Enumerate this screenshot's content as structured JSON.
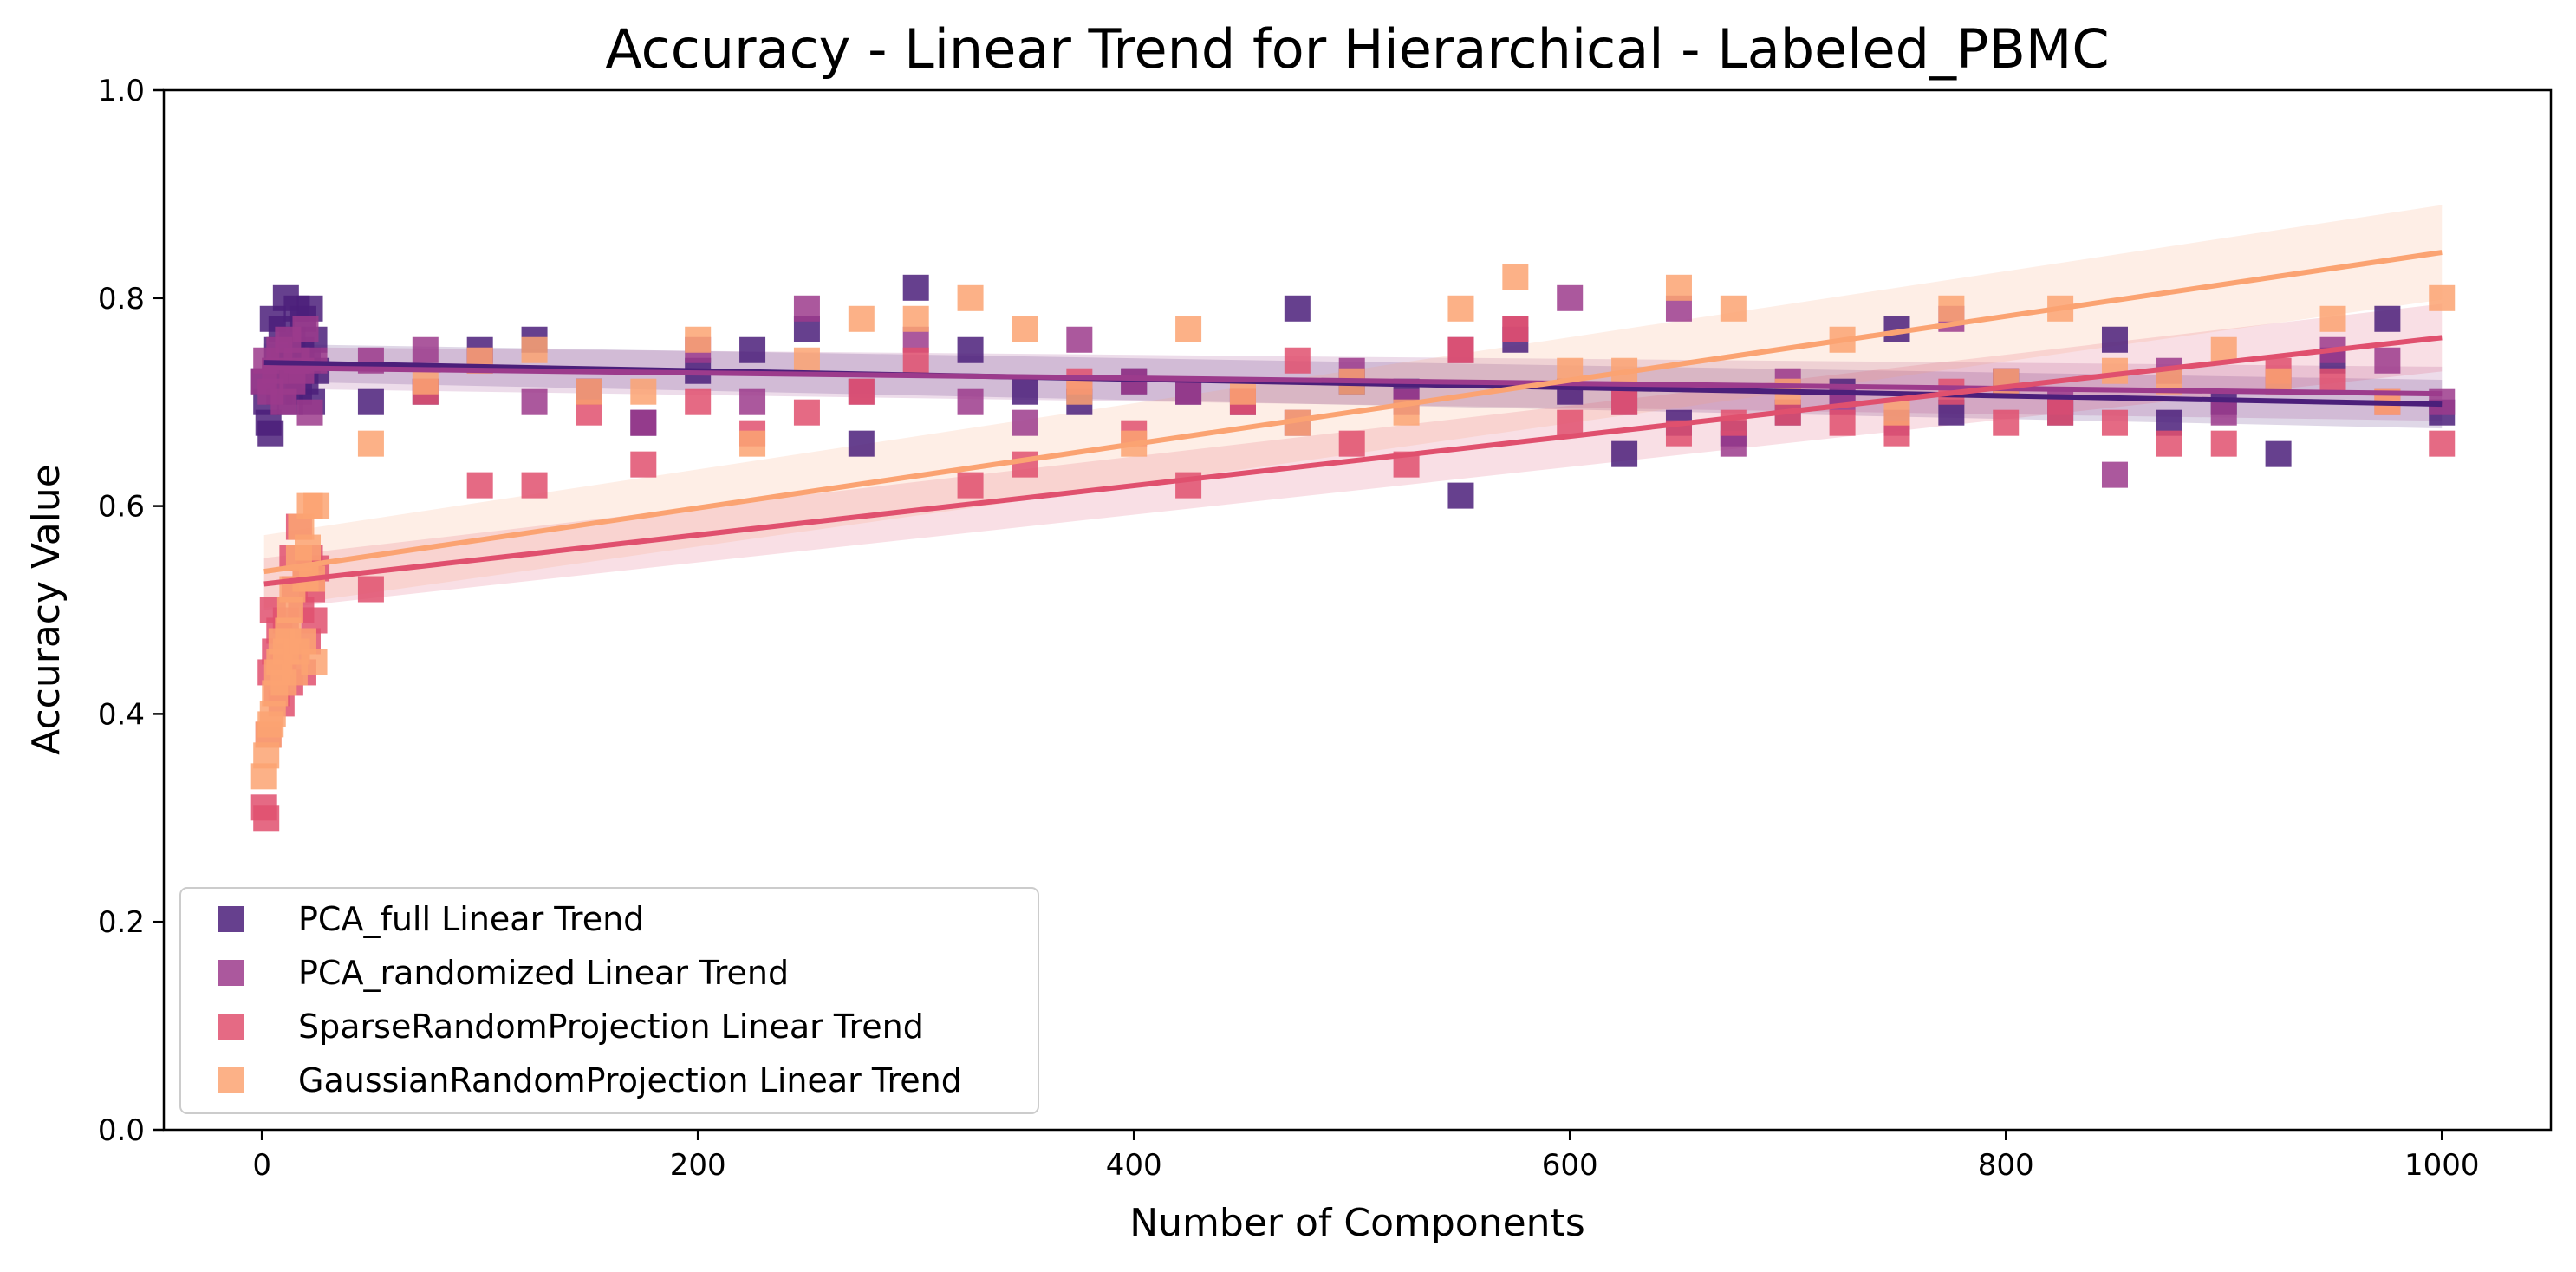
{
  "chart_data": {
    "type": "scatter",
    "title": "Accuracy - Linear Trend for Hierarchical - Labeled_PBMC",
    "xlabel": "Number of Components",
    "ylabel": "Accuracy Value",
    "xlim": [
      -45,
      1050
    ],
    "ylim": [
      0.0,
      1.0
    ],
    "xticks": [
      0,
      200,
      400,
      600,
      800,
      1000
    ],
    "yticks": [
      0.0,
      0.2,
      0.4,
      0.6,
      0.8,
      1.0
    ],
    "xtick_labels": [
      "0",
      "200",
      "400",
      "600",
      "800",
      "1000"
    ],
    "ytick_labels": [
      "0.0",
      "0.2",
      "0.4",
      "0.6",
      "0.8",
      "1.0"
    ],
    "grid": false,
    "legend_position": "bottom-left",
    "series": [
      {
        "name": "PCA_full Linear Trend",
        "color": "#4b1f7a",
        "trend": {
          "x": [
            1,
            1000
          ],
          "y": [
            0.738,
            0.698
          ]
        },
        "band": 0.018,
        "x": [
          1,
          2,
          3,
          4,
          5,
          6,
          7,
          8,
          9,
          10,
          11,
          12,
          13,
          14,
          15,
          16,
          17,
          18,
          19,
          20,
          21,
          22,
          23,
          24,
          25,
          50,
          75,
          100,
          125,
          150,
          175,
          200,
          225,
          250,
          275,
          300,
          325,
          350,
          375,
          400,
          425,
          450,
          475,
          500,
          525,
          550,
          575,
          600,
          625,
          650,
          675,
          700,
          725,
          750,
          775,
          800,
          825,
          850,
          875,
          900,
          925,
          950,
          975,
          1000
        ],
        "y": [
          0.72,
          0.7,
          0.68,
          0.67,
          0.78,
          0.73,
          0.75,
          0.71,
          0.77,
          0.74,
          0.8,
          0.72,
          0.7,
          0.76,
          0.73,
          0.79,
          0.71,
          0.75,
          0.78,
          0.72,
          0.74,
          0.79,
          0.7,
          0.76,
          0.73,
          0.7,
          0.71,
          0.75,
          0.76,
          0.71,
          0.68,
          0.73,
          0.75,
          0.77,
          0.66,
          0.81,
          0.75,
          0.71,
          0.7,
          0.72,
          0.71,
          0.7,
          0.79,
          0.72,
          0.71,
          0.61,
          0.76,
          0.71,
          0.65,
          0.68,
          0.67,
          0.69,
          0.71,
          0.77,
          0.69,
          0.72,
          0.69,
          0.76,
          0.68,
          0.7,
          0.65,
          0.74,
          0.78,
          0.69
        ]
      },
      {
        "name": "PCA_randomized Linear Trend",
        "color": "#9c3b8c",
        "trend": {
          "x": [
            1,
            1000
          ],
          "y": [
            0.733,
            0.708
          ]
        },
        "band": 0.02,
        "x": [
          1,
          2,
          4,
          6,
          8,
          10,
          12,
          14,
          16,
          18,
          20,
          22,
          24,
          50,
          75,
          100,
          125,
          150,
          175,
          200,
          225,
          250,
          275,
          300,
          325,
          350,
          375,
          400,
          425,
          450,
          475,
          500,
          525,
          550,
          575,
          600,
          625,
          650,
          675,
          700,
          725,
          750,
          775,
          800,
          825,
          850,
          875,
          900,
          925,
          950,
          975,
          1000
        ],
        "y": [
          0.72,
          0.74,
          0.71,
          0.73,
          0.75,
          0.7,
          0.76,
          0.72,
          0.74,
          0.73,
          0.77,
          0.69,
          0.74,
          0.74,
          0.75,
          0.74,
          0.7,
          0.71,
          0.68,
          0.75,
          0.7,
          0.79,
          0.71,
          0.76,
          0.7,
          0.68,
          0.76,
          0.72,
          0.71,
          0.7,
          0.68,
          0.73,
          0.7,
          0.75,
          0.77,
          0.8,
          0.7,
          0.79,
          0.66,
          0.72,
          0.7,
          0.68,
          0.78,
          0.72,
          0.7,
          0.63,
          0.73,
          0.69,
          0.72,
          0.75,
          0.74,
          0.7
        ]
      },
      {
        "name": "SparseRandomProjection Linear Trend",
        "color": "#e0506e",
        "trend": {
          "x": [
            1,
            1000
          ],
          "y": [
            0.525,
            0.762
          ]
        },
        "band": 0.025,
        "x": [
          1,
          2,
          3,
          4,
          5,
          6,
          7,
          8,
          9,
          10,
          11,
          12,
          13,
          14,
          15,
          16,
          17,
          18,
          19,
          20,
          21,
          22,
          23,
          24,
          25,
          50,
          75,
          100,
          125,
          150,
          175,
          200,
          225,
          250,
          275,
          300,
          325,
          350,
          375,
          400,
          425,
          450,
          475,
          500,
          525,
          550,
          575,
          600,
          625,
          650,
          675,
          700,
          725,
          750,
          775,
          800,
          825,
          850,
          875,
          900,
          925,
          950,
          975,
          1000
        ],
        "y": [
          0.31,
          0.3,
          0.38,
          0.44,
          0.5,
          0.46,
          0.42,
          0.48,
          0.41,
          0.45,
          0.49,
          0.47,
          0.43,
          0.55,
          0.52,
          0.46,
          0.58,
          0.5,
          0.44,
          0.53,
          0.47,
          0.55,
          0.52,
          0.49,
          0.54,
          0.52,
          0.71,
          0.62,
          0.62,
          0.69,
          0.64,
          0.7,
          0.67,
          0.69,
          0.71,
          0.74,
          0.62,
          0.64,
          0.72,
          0.67,
          0.62,
          0.7,
          0.74,
          0.66,
          0.64,
          0.75,
          0.77,
          0.68,
          0.7,
          0.67,
          0.68,
          0.69,
          0.68,
          0.67,
          0.71,
          0.68,
          0.69,
          0.68,
          0.66,
          0.66,
          0.73,
          0.72,
          0.7,
          0.66
        ]
      },
      {
        "name": "GaussianRandomProjection Linear Trend",
        "color": "#fba372",
        "trend": {
          "x": [
            1,
            1000
          ],
          "y": [
            0.537,
            0.844
          ]
        },
        "band": 0.035,
        "x": [
          1,
          2,
          3,
          4,
          5,
          6,
          7,
          8,
          9,
          10,
          11,
          12,
          13,
          14,
          15,
          16,
          17,
          18,
          19,
          20,
          21,
          22,
          23,
          24,
          25,
          50,
          75,
          100,
          125,
          150,
          175,
          200,
          225,
          250,
          275,
          300,
          325,
          350,
          375,
          400,
          425,
          450,
          475,
          500,
          525,
          550,
          575,
          600,
          625,
          650,
          675,
          700,
          725,
          750,
          775,
          800,
          825,
          850,
          875,
          900,
          925,
          950,
          975,
          1000
        ],
        "y": [
          0.34,
          0.36,
          0.38,
          0.39,
          0.4,
          0.42,
          0.44,
          0.45,
          0.47,
          0.43,
          0.46,
          0.48,
          0.5,
          0.52,
          0.44,
          0.46,
          0.55,
          0.58,
          0.47,
          0.53,
          0.56,
          0.6,
          0.53,
          0.45,
          0.6,
          0.66,
          0.72,
          0.74,
          0.75,
          0.71,
          0.71,
          0.76,
          0.66,
          0.74,
          0.78,
          0.78,
          0.8,
          0.77,
          0.71,
          0.66,
          0.77,
          0.71,
          0.68,
          0.72,
          0.69,
          0.79,
          0.82,
          0.73,
          0.73,
          0.81,
          0.79,
          0.71,
          0.76,
          0.69,
          0.79,
          0.72,
          0.79,
          0.73,
          0.72,
          0.75,
          0.72,
          0.78,
          0.7,
          0.8
        ]
      }
    ]
  }
}
